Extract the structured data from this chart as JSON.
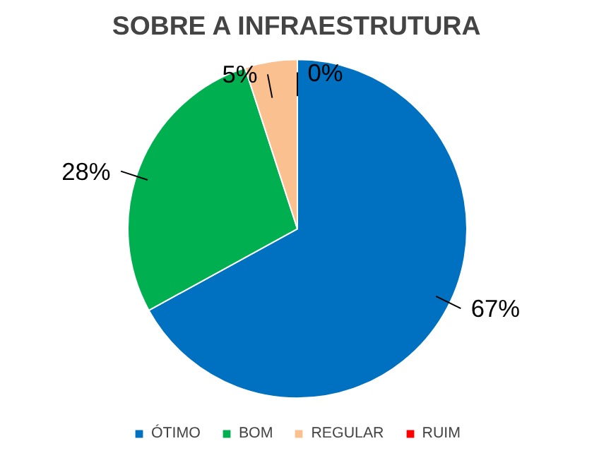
{
  "chart_data": {
    "type": "pie",
    "title": "SOBRE A INFRAESTRUTURA",
    "categories": [
      "ÓTIMO",
      "BOM",
      "REGULAR",
      "RUIM"
    ],
    "values": [
      67,
      28,
      5,
      0
    ],
    "colors": [
      "#0070c0",
      "#00b050",
      "#fac090",
      "#ff0000"
    ],
    "value_labels": [
      "67%",
      "28%",
      "5%",
      "0%"
    ],
    "legend": "bottom"
  }
}
